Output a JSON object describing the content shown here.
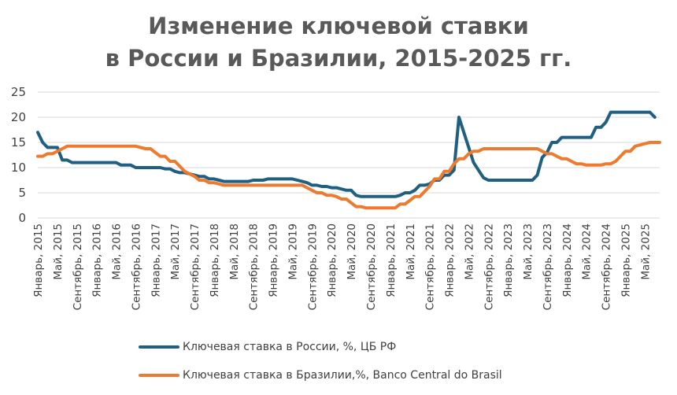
{
  "title_line1": "Изменение ключевой ставки",
  "title_line2": "в России и Бразилии, 2015-2025 гг.",
  "colors": {
    "russia": "#1f5f82",
    "brazil": "#ee7a2f",
    "grid": "#d9d9d9",
    "axis_text": "#404040"
  },
  "chart_data": {
    "type": "line",
    "title": "Изменение ключевой ставки в России и Бразилии, 2015-2025 гг.",
    "xlabel": "",
    "ylabel": "",
    "ylim": [
      0,
      25
    ],
    "y_ticks": [
      0,
      5,
      10,
      15,
      20,
      25
    ],
    "grid": true,
    "legend_position": "bottom",
    "x_range": [
      "2015-01",
      "2025-08"
    ],
    "x_tick_labels": [
      "Январь, 2015",
      "Май, 2015",
      "Сентябрь, 2015",
      "Январь, 2016",
      "Май, 2016",
      "Сентябрь, 2016",
      "Январь, 2017",
      "Май, 2017",
      "Сентябрь, 2017",
      "Январь, 2018",
      "Май, 2018",
      "Сентябрь, 2018",
      "Январь, 2019",
      "Май, 2019",
      "Сентябрь, 2019",
      "Январь, 2020",
      "Май, 2020",
      "Сентябрь, 2020",
      "Январь, 2021",
      "Май, 2021",
      "Сентябрь, 2021",
      "Январь, 2022",
      "Май, 2022",
      "Сентябрь, 2022",
      "Январь, 2023",
      "Май, 2023",
      "Сентябрь, 2023",
      "Январь, 2024",
      "Май, 2024",
      "Сентябрь, 2024",
      "Январь, 2025",
      "Май, 2025"
    ],
    "series": [
      {
        "name": "Ключевая ставка в России, %, ЦБ РФ",
        "color": "#1f5f82",
        "points": [
          [
            "2015-01",
            17
          ],
          [
            "2015-02",
            15
          ],
          [
            "2015-03",
            14
          ],
          [
            "2015-05",
            14
          ],
          [
            "2015-06",
            11.5
          ],
          [
            "2015-07",
            11.5
          ],
          [
            "2015-08",
            11
          ],
          [
            "2016-05",
            11
          ],
          [
            "2016-06",
            10.5
          ],
          [
            "2016-08",
            10.5
          ],
          [
            "2016-09",
            10
          ],
          [
            "2017-02",
            10
          ],
          [
            "2017-03",
            9.75
          ],
          [
            "2017-04",
            9.75
          ],
          [
            "2017-05",
            9.25
          ],
          [
            "2017-06",
            9
          ],
          [
            "2017-07",
            9
          ],
          [
            "2017-09",
            8.5
          ],
          [
            "2017-10",
            8.25
          ],
          [
            "2017-11",
            8.25
          ],
          [
            "2017-12",
            7.75
          ],
          [
            "2018-01",
            7.75
          ],
          [
            "2018-02",
            7.5
          ],
          [
            "2018-03",
            7.25
          ],
          [
            "2018-08",
            7.25
          ],
          [
            "2018-09",
            7.5
          ],
          [
            "2018-11",
            7.5
          ],
          [
            "2018-12",
            7.75
          ],
          [
            "2019-05",
            7.75
          ],
          [
            "2019-06",
            7.5
          ],
          [
            "2019-07",
            7.25
          ],
          [
            "2019-08",
            7
          ],
          [
            "2019-09",
            6.5
          ],
          [
            "2019-10",
            6.5
          ],
          [
            "2019-11",
            6.25
          ],
          [
            "2019-12",
            6.25
          ],
          [
            "2020-01",
            6
          ],
          [
            "2020-02",
            6
          ],
          [
            "2020-03",
            5.75
          ],
          [
            "2020-04",
            5.5
          ],
          [
            "2020-05",
            5.5
          ],
          [
            "2020-06",
            4.5
          ],
          [
            "2020-07",
            4.25
          ],
          [
            "2021-02",
            4.25
          ],
          [
            "2021-03",
            4.5
          ],
          [
            "2021-04",
            5
          ],
          [
            "2021-05",
            5
          ],
          [
            "2021-06",
            5.5
          ],
          [
            "2021-07",
            6.5
          ],
          [
            "2021-08",
            6.5
          ],
          [
            "2021-09",
            6.75
          ],
          [
            "2021-10",
            7.5
          ],
          [
            "2021-11",
            7.5
          ],
          [
            "2021-12",
            8.5
          ],
          [
            "2022-01",
            8.5
          ],
          [
            "2022-02",
            9.5
          ],
          [
            "2022-03",
            20
          ],
          [
            "2022-04",
            17
          ],
          [
            "2022-05",
            14
          ],
          [
            "2022-06",
            11
          ],
          [
            "2022-07",
            9.5
          ],
          [
            "2022-08",
            8
          ],
          [
            "2022-09",
            7.5
          ],
          [
            "2023-06",
            7.5
          ],
          [
            "2023-07",
            8.5
          ],
          [
            "2023-08",
            12
          ],
          [
            "2023-09",
            13
          ],
          [
            "2023-10",
            15
          ],
          [
            "2023-11",
            15
          ],
          [
            "2023-12",
            16
          ],
          [
            "2024-06",
            16
          ],
          [
            "2024-07",
            18
          ],
          [
            "2024-08",
            18
          ],
          [
            "2024-09",
            19
          ],
          [
            "2024-10",
            21
          ],
          [
            "2025-06",
            21
          ],
          [
            "2025-07",
            20
          ]
        ]
      },
      {
        "name": "Ключевая ставка в Бразилии,%, Banco Central do Brasil",
        "color": "#ee7a2f",
        "points": [
          [
            "2015-01",
            12.25
          ],
          [
            "2015-02",
            12.25
          ],
          [
            "2015-03",
            12.75
          ],
          [
            "2015-04",
            12.75
          ],
          [
            "2015-05",
            13.25
          ],
          [
            "2015-06",
            13.75
          ],
          [
            "2015-07",
            14.25
          ],
          [
            "2016-09",
            14.25
          ],
          [
            "2016-10",
            14
          ],
          [
            "2016-11",
            13.75
          ],
          [
            "2016-12",
            13.75
          ],
          [
            "2017-01",
            13
          ],
          [
            "2017-02",
            12.25
          ],
          [
            "2017-03",
            12.25
          ],
          [
            "2017-04",
            11.25
          ],
          [
            "2017-05",
            11.25
          ],
          [
            "2017-06",
            10.25
          ],
          [
            "2017-07",
            9.25
          ],
          [
            "2017-09",
            8.25
          ],
          [
            "2017-10",
            7.5
          ],
          [
            "2017-11",
            7.5
          ],
          [
            "2017-12",
            7
          ],
          [
            "2018-01",
            7
          ],
          [
            "2018-02",
            6.75
          ],
          [
            "2018-03",
            6.5
          ],
          [
            "2019-07",
            6.5
          ],
          [
            "2019-08",
            6
          ],
          [
            "2019-09",
            5.5
          ],
          [
            "2019-10",
            5
          ],
          [
            "2019-11",
            5
          ],
          [
            "2019-12",
            4.5
          ],
          [
            "2020-01",
            4.5
          ],
          [
            "2020-02",
            4.25
          ],
          [
            "2020-03",
            3.75
          ],
          [
            "2020-04",
            3.75
          ],
          [
            "2020-05",
            3
          ],
          [
            "2020-06",
            2.25
          ],
          [
            "2020-07",
            2.25
          ],
          [
            "2020-08",
            2
          ],
          [
            "2021-02",
            2
          ],
          [
            "2021-03",
            2.75
          ],
          [
            "2021-04",
            2.75
          ],
          [
            "2021-05",
            3.5
          ],
          [
            "2021-06",
            4.25
          ],
          [
            "2021-07",
            4.25
          ],
          [
            "2021-08",
            5.25
          ],
          [
            "2021-09",
            6.25
          ],
          [
            "2021-10",
            7.75
          ],
          [
            "2021-11",
            7.75
          ],
          [
            "2021-12",
            9.25
          ],
          [
            "2022-01",
            9.25
          ],
          [
            "2022-02",
            10.75
          ],
          [
            "2022-03",
            11.75
          ],
          [
            "2022-04",
            11.75
          ],
          [
            "2022-05",
            12.75
          ],
          [
            "2022-06",
            13.25
          ],
          [
            "2022-07",
            13.25
          ],
          [
            "2022-08",
            13.75
          ],
          [
            "2023-07",
            13.75
          ],
          [
            "2023-08",
            13.25
          ],
          [
            "2023-09",
            12.75
          ],
          [
            "2023-10",
            12.75
          ],
          [
            "2023-11",
            12.25
          ],
          [
            "2023-12",
            11.75
          ],
          [
            "2024-01",
            11.75
          ],
          [
            "2024-02",
            11.25
          ],
          [
            "2024-03",
            10.75
          ],
          [
            "2024-04",
            10.75
          ],
          [
            "2024-05",
            10.5
          ],
          [
            "2024-08",
            10.5
          ],
          [
            "2024-09",
            10.75
          ],
          [
            "2024-10",
            10.75
          ],
          [
            "2024-11",
            11.25
          ],
          [
            "2024-12",
            12.25
          ],
          [
            "2025-01",
            13.25
          ],
          [
            "2025-02",
            13.25
          ],
          [
            "2025-03",
            14.25
          ],
          [
            "2025-05",
            14.75
          ],
          [
            "2025-06",
            15
          ],
          [
            "2025-07",
            15
          ],
          [
            "2025-08",
            15
          ]
        ]
      }
    ]
  }
}
